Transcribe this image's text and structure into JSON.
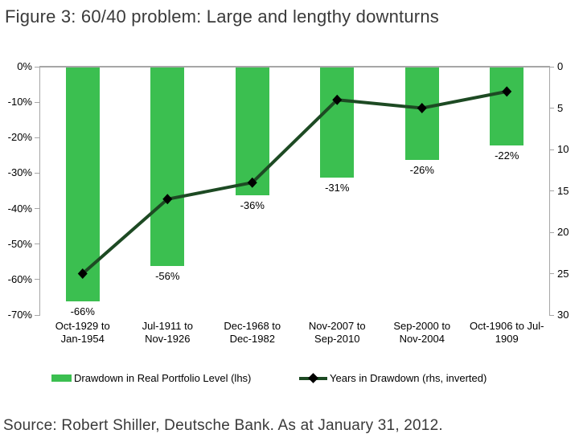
{
  "title": "Figure 3: 60/40 problem: Large and lengthy downturns",
  "source": "Source: Robert Shiller, Deutsche Bank. As at January 31, 2012.",
  "colors": {
    "bar": "#3bbf50",
    "line": "#1d4a23",
    "marker": "#000000",
    "axis": "#a6a6a6",
    "text": "#000000",
    "heading": "#3a3a3a"
  },
  "legend": {
    "bar_label": "Drawdown in Real Portfolio Level (lhs)",
    "line_label": "Years in Drawdown (rhs, inverted)"
  },
  "chart_data": {
    "type": "bar",
    "subtype": "combo bar + line, dual axis",
    "categories": [
      [
        "Oct-1929 to",
        "Jan-1954"
      ],
      [
        "Jul-1911 to",
        "Nov-1926"
      ],
      [
        "Dec-1968 to",
        "Dec-1982"
      ],
      [
        "Nov-2007 to",
        "Sep-2010"
      ],
      [
        "Sep-2000 to",
        "Nov-2004"
      ],
      [
        "Oct-1906 to Jul-",
        "1909"
      ]
    ],
    "series": [
      {
        "name": "Drawdown in Real Portfolio Level (lhs)",
        "type": "bar",
        "axis": "left",
        "values": [
          -66,
          -56,
          -36,
          -31,
          -26,
          -22
        ],
        "data_labels": [
          "-66%",
          "-56%",
          "-36%",
          "-31%",
          "-26%",
          "-22%"
        ]
      },
      {
        "name": "Years in Drawdown (rhs, inverted)",
        "type": "line",
        "axis": "right",
        "values": [
          25,
          16,
          14,
          4,
          5,
          3
        ]
      }
    ],
    "left_axis": {
      "ticks": [
        "0%",
        "-10%",
        "-20%",
        "-30%",
        "-40%",
        "-50%",
        "-60%",
        "-70%"
      ],
      "range": [
        0,
        -70
      ]
    },
    "right_axis": {
      "ticks": [
        "0",
        "5",
        "10",
        "15",
        "20",
        "25",
        "30"
      ],
      "range": [
        0,
        30
      ],
      "inverted": true
    },
    "grid": "zero line only",
    "legend_position": "bottom"
  }
}
